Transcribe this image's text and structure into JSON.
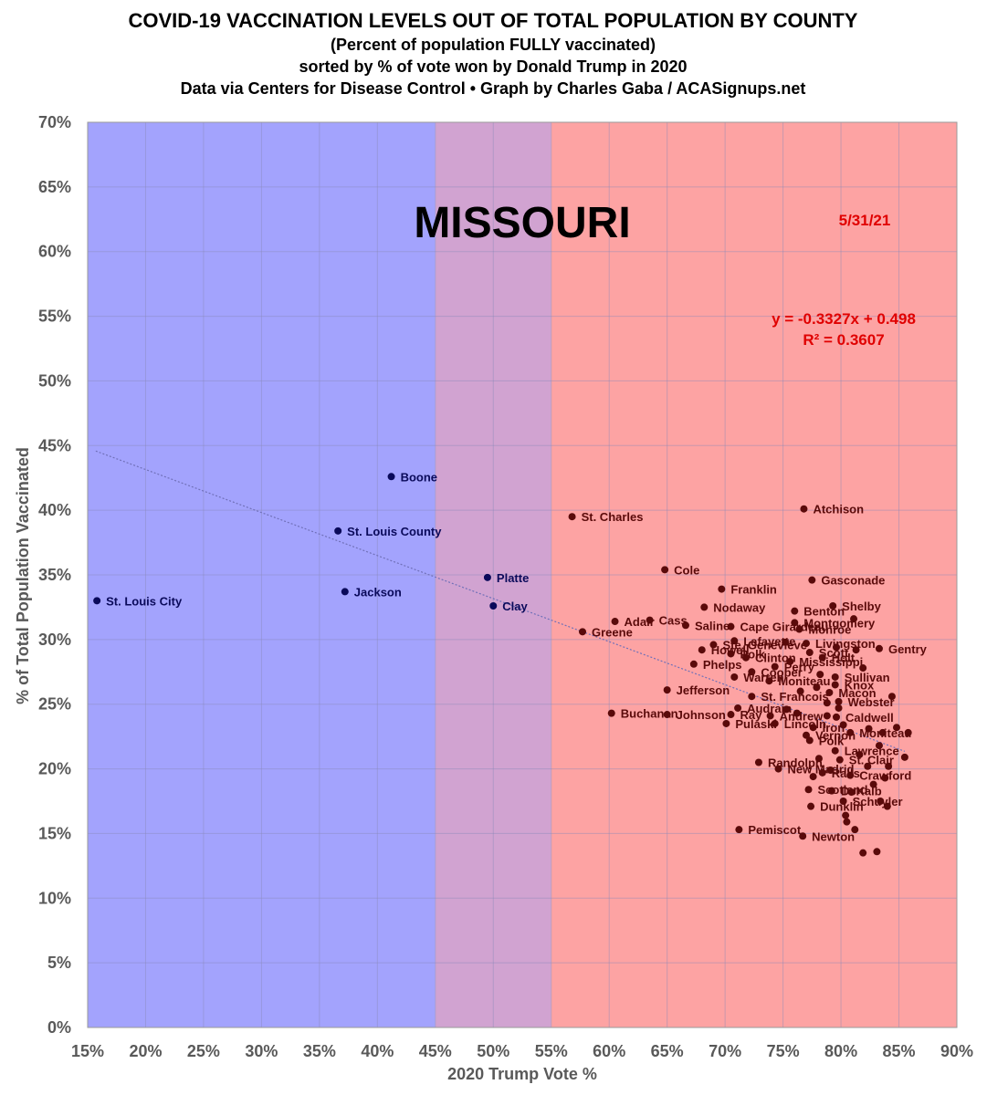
{
  "chart_data": {
    "type": "scatter",
    "title": "COVID-19 VACCINATION LEVELS OUT OF TOTAL POPULATION BY COUNTY",
    "subtitle_lines": [
      "(Percent of population FULLY vaccinated)",
      "sorted by % of vote won by Donald Trump in 2020",
      "Data via Centers for Disease Control • Graph by Charles Gaba / ACASignups.net"
    ],
    "state_label": "MISSOURI",
    "date_label": "5/31/21",
    "equation": "y = -0.3327x + 0.498",
    "r_squared": "R² = 0.3607",
    "xlabel": "2020 Trump Vote %",
    "ylabel": "% of Total Population Vaccinated",
    "xlim": [
      15,
      90
    ],
    "ylim": [
      0,
      70
    ],
    "x_ticks": [
      "15%",
      "20%",
      "25%",
      "30%",
      "35%",
      "40%",
      "45%",
      "50%",
      "55%",
      "60%",
      "65%",
      "70%",
      "75%",
      "80%",
      "85%",
      "90%"
    ],
    "y_ticks": [
      "0%",
      "5%",
      "10%",
      "15%",
      "20%",
      "25%",
      "30%",
      "35%",
      "40%",
      "45%",
      "50%",
      "55%",
      "60%",
      "65%",
      "70%"
    ],
    "regions": [
      {
        "name": "blue",
        "from": 15,
        "to": 45,
        "color": "#a3a3fd"
      },
      {
        "name": "purple",
        "from": 45,
        "to": 55,
        "color": "#d1a3d1"
      },
      {
        "name": "red",
        "from": 55,
        "to": 90,
        "color": "#fda3a3"
      }
    ],
    "trendline": {
      "slope": -0.3327,
      "intercept": 0.498,
      "x_from": 15.7,
      "x_to": 85.5,
      "color": "#7070b8"
    },
    "point_colors": {
      "blue": "#0a0a5a",
      "red": "#5a0a0a"
    },
    "points": [
      {
        "name": "St. Louis City",
        "x": 15.8,
        "y": 33.0,
        "group": "blue"
      },
      {
        "name": "Boone",
        "x": 41.2,
        "y": 42.6,
        "group": "blue"
      },
      {
        "name": "St. Louis County",
        "x": 36.6,
        "y": 38.4,
        "group": "blue"
      },
      {
        "name": "Jackson",
        "x": 37.2,
        "y": 33.7,
        "group": "blue"
      },
      {
        "name": "Platte",
        "x": 49.5,
        "y": 34.8,
        "group": "blue"
      },
      {
        "name": "Clay",
        "x": 50.0,
        "y": 32.6,
        "group": "blue"
      },
      {
        "name": "St. Charles",
        "x": 56.8,
        "y": 39.5,
        "group": "red"
      },
      {
        "name": "Greene",
        "x": 57.7,
        "y": 30.6,
        "group": "red"
      },
      {
        "name": "Adair",
        "x": 60.5,
        "y": 31.4,
        "group": "red"
      },
      {
        "name": "Cass",
        "x": 63.5,
        "y": 31.5,
        "group": "red"
      },
      {
        "name": "Cole",
        "x": 64.8,
        "y": 35.4,
        "group": "red"
      },
      {
        "name": "Franklin",
        "x": 69.7,
        "y": 33.9,
        "group": "red"
      },
      {
        "name": "Nodaway",
        "x": 68.2,
        "y": 32.5,
        "group": "red"
      },
      {
        "name": "Saline",
        "x": 66.6,
        "y": 31.1,
        "group": "red"
      },
      {
        "name": "Cape Girardeau",
        "x": 70.5,
        "y": 31.0,
        "group": "red"
      },
      {
        "name": "Lafayette",
        "x": 70.8,
        "y": 29.9,
        "group": "red"
      },
      {
        "name": "Ste. Genevieve",
        "x": 69.0,
        "y": 29.6,
        "group": "red"
      },
      {
        "name": "Howell",
        "x": 68.0,
        "y": 29.2,
        "group": "red"
      },
      {
        "name": "Polk",
        "x": 70.5,
        "y": 28.9,
        "group": "red"
      },
      {
        "name": "Clinton",
        "x": 71.8,
        "y": 28.6,
        "group": "red"
      },
      {
        "name": "Phelps",
        "x": 67.3,
        "y": 28.1,
        "group": "red"
      },
      {
        "name": "Cooper",
        "x": 72.3,
        "y": 27.5,
        "group": "red"
      },
      {
        "name": "Benton",
        "x": 76.0,
        "y": 32.2,
        "group": "red"
      },
      {
        "name": "Atchison",
        "x": 76.8,
        "y": 40.1,
        "group": "red"
      },
      {
        "name": "Gasconade",
        "x": 77.5,
        "y": 34.6,
        "group": "red"
      },
      {
        "name": "Shelby",
        "x": 79.3,
        "y": 32.6,
        "group": "red"
      },
      {
        "name": "Montgomery",
        "x": 76.0,
        "y": 31.3,
        "group": "red"
      },
      {
        "name": "Monroe",
        "x": 76.4,
        "y": 30.8,
        "group": "red"
      },
      {
        "name": "Livingston",
        "x": 77.0,
        "y": 29.7,
        "group": "red"
      },
      {
        "name": "Gentry",
        "x": 83.3,
        "y": 29.3,
        "group": "red"
      },
      {
        "name": "Scott",
        "x": 77.3,
        "y": 29.0,
        "group": "red"
      },
      {
        "name": "Mississippi",
        "x": 75.6,
        "y": 28.3,
        "group": "red"
      },
      {
        "name": "Holt",
        "x": 78.4,
        "y": 28.6,
        "group": "red"
      },
      {
        "name": "Perry",
        "x": 74.3,
        "y": 27.9,
        "group": "red"
      },
      {
        "name": "Sullivan",
        "x": 79.5,
        "y": 27.1,
        "group": "red"
      },
      {
        "name": "Warren",
        "x": 70.8,
        "y": 27.1,
        "group": "red"
      },
      {
        "name": "Moniteau",
        "x": 73.8,
        "y": 26.8,
        "group": "red"
      },
      {
        "name": "Jefferson",
        "x": 65.0,
        "y": 26.1,
        "group": "red"
      },
      {
        "name": "St. Francois",
        "x": 72.3,
        "y": 25.6,
        "group": "red"
      },
      {
        "name": "Macon",
        "x": 79.0,
        "y": 25.9,
        "group": "red"
      },
      {
        "name": "Knox",
        "x": 79.5,
        "y": 26.5,
        "group": "red"
      },
      {
        "name": "Webster",
        "x": 79.8,
        "y": 25.2,
        "group": "red"
      },
      {
        "name": "Audrain",
        "x": 71.1,
        "y": 24.7,
        "group": "red"
      },
      {
        "name": "Caldwell",
        "x": 79.6,
        "y": 24.0,
        "group": "red"
      },
      {
        "name": "Buchanan",
        "x": 60.2,
        "y": 24.3,
        "group": "red"
      },
      {
        "name": "Johnson",
        "x": 65.0,
        "y": 24.2,
        "group": "red"
      },
      {
        "name": "Ray",
        "x": 70.5,
        "y": 24.2,
        "group": "red"
      },
      {
        "name": "Andrew",
        "x": 73.9,
        "y": 24.1,
        "group": "red"
      },
      {
        "name": "Pulaski",
        "x": 70.1,
        "y": 23.5,
        "group": "red"
      },
      {
        "name": "Lincoln",
        "x": 74.3,
        "y": 23.5,
        "group": "red"
      },
      {
        "name": "Iron",
        "x": 77.6,
        "y": 23.2,
        "group": "red"
      },
      {
        "name": "Moniteau",
        "x": 80.8,
        "y": 22.8,
        "group": "red"
      },
      {
        "name": "Vernon",
        "x": 77.0,
        "y": 22.6,
        "group": "red"
      },
      {
        "name": "Polk",
        "x": 77.3,
        "y": 22.2,
        "group": "red"
      },
      {
        "name": "Lawrence",
        "x": 79.5,
        "y": 21.4,
        "group": "red"
      },
      {
        "name": "St. Clair",
        "x": 79.9,
        "y": 20.7,
        "group": "red"
      },
      {
        "name": "Randolph",
        "x": 72.9,
        "y": 20.5,
        "group": "red"
      },
      {
        "name": "New Madrid",
        "x": 74.6,
        "y": 20.0,
        "group": "red"
      },
      {
        "name": "Ralls",
        "x": 78.4,
        "y": 19.7,
        "group": "red"
      },
      {
        "name": "Crawford",
        "x": 80.8,
        "y": 19.5,
        "group": "red"
      },
      {
        "name": "DeKalb",
        "x": 79.2,
        "y": 18.3,
        "group": "red"
      },
      {
        "name": "Scotland",
        "x": 77.2,
        "y": 18.4,
        "group": "red"
      },
      {
        "name": "Schuyler",
        "x": 80.2,
        "y": 17.5,
        "group": "red"
      },
      {
        "name": "Dunklin",
        "x": 77.4,
        "y": 17.1,
        "group": "red"
      },
      {
        "name": "Pemiscot",
        "x": 71.2,
        "y": 15.3,
        "group": "red"
      },
      {
        "name": "Newton",
        "x": 76.7,
        "y": 14.8,
        "group": "red"
      },
      {
        "name": "",
        "x": 75.3,
        "y": 24.6,
        "group": "red"
      },
      {
        "name": "",
        "x": 78.8,
        "y": 25.1,
        "group": "red"
      },
      {
        "name": "",
        "x": 79.8,
        "y": 24.7,
        "group": "red"
      },
      {
        "name": "",
        "x": 81.9,
        "y": 27.8,
        "group": "red"
      },
      {
        "name": "",
        "x": 81.1,
        "y": 31.6,
        "group": "red"
      },
      {
        "name": "",
        "x": 84.4,
        "y": 25.6,
        "group": "red"
      },
      {
        "name": "",
        "x": 83.6,
        "y": 22.8,
        "group": "red"
      },
      {
        "name": "",
        "x": 84.8,
        "y": 23.2,
        "group": "red"
      },
      {
        "name": "",
        "x": 85.8,
        "y": 22.8,
        "group": "red"
      },
      {
        "name": "",
        "x": 83.3,
        "y": 21.8,
        "group": "red"
      },
      {
        "name": "",
        "x": 85.5,
        "y": 20.9,
        "group": "red"
      },
      {
        "name": "",
        "x": 84.1,
        "y": 20.2,
        "group": "red"
      },
      {
        "name": "",
        "x": 83.8,
        "y": 19.3,
        "group": "red"
      },
      {
        "name": "",
        "x": 82.8,
        "y": 18.8,
        "group": "red"
      },
      {
        "name": "",
        "x": 83.4,
        "y": 17.5,
        "group": "red"
      },
      {
        "name": "",
        "x": 84.0,
        "y": 17.1,
        "group": "red"
      },
      {
        "name": "",
        "x": 80.4,
        "y": 16.4,
        "group": "red"
      },
      {
        "name": "",
        "x": 80.5,
        "y": 15.9,
        "group": "red"
      },
      {
        "name": "",
        "x": 81.2,
        "y": 15.3,
        "group": "red"
      },
      {
        "name": "",
        "x": 81.9,
        "y": 13.5,
        "group": "red"
      },
      {
        "name": "",
        "x": 83.1,
        "y": 13.6,
        "group": "red"
      },
      {
        "name": "",
        "x": 78.8,
        "y": 24.1,
        "group": "red"
      },
      {
        "name": "",
        "x": 80.2,
        "y": 23.4,
        "group": "red"
      },
      {
        "name": "",
        "x": 81.6,
        "y": 21.1,
        "group": "red"
      },
      {
        "name": "",
        "x": 82.3,
        "y": 20.2,
        "group": "red"
      },
      {
        "name": "",
        "x": 79.1,
        "y": 19.9,
        "group": "red"
      },
      {
        "name": "",
        "x": 78.1,
        "y": 20.8,
        "group": "red"
      },
      {
        "name": "",
        "x": 76.5,
        "y": 26.0,
        "group": "red"
      },
      {
        "name": "",
        "x": 77.9,
        "y": 26.3,
        "group": "red"
      },
      {
        "name": "",
        "x": 75.2,
        "y": 29.8,
        "group": "red"
      },
      {
        "name": "",
        "x": 76.2,
        "y": 24.3,
        "group": "red"
      },
      {
        "name": "",
        "x": 79.6,
        "y": 29.4,
        "group": "red"
      },
      {
        "name": "",
        "x": 81.3,
        "y": 29.2,
        "group": "red"
      },
      {
        "name": "",
        "x": 78.2,
        "y": 27.3,
        "group": "red"
      },
      {
        "name": "",
        "x": 82.4,
        "y": 23.1,
        "group": "red"
      },
      {
        "name": "",
        "x": 80.9,
        "y": 18.2,
        "group": "red"
      },
      {
        "name": "",
        "x": 77.6,
        "y": 19.4,
        "group": "red"
      }
    ]
  }
}
